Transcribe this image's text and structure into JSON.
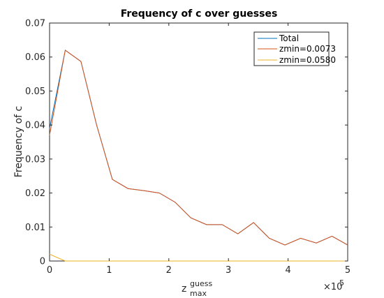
{
  "chart_data": {
    "type": "line",
    "title": "Frequency of c over guesses",
    "ylabel": "Frequency of c",
    "xlabel": {
      "base": "z",
      "superscript": "guess",
      "subscript": "max"
    },
    "x_exponent_label": {
      "base": "×10",
      "exponent": "5"
    },
    "xlim": [
      0,
      5
    ],
    "ylim": [
      0,
      0.07
    ],
    "x_ticks": [
      0,
      1,
      2,
      3,
      4,
      5
    ],
    "x_tick_labels": [
      "0",
      "1",
      "2",
      "3",
      "4",
      "5"
    ],
    "y_ticks": [
      0,
      0.01,
      0.02,
      0.03,
      0.04,
      0.05,
      0.06,
      0.07
    ],
    "y_tick_labels": [
      "0",
      "0.01",
      "0.02",
      "0.03",
      "0.04",
      "0.05",
      "0.06",
      "0.07"
    ],
    "grid": false,
    "legend_position": "top-right",
    "series": [
      {
        "name": "Total",
        "color": "#0072BD",
        "x": [
          0,
          0.263,
          0.526,
          0.789,
          1.053,
          1.316,
          1.579,
          1.842,
          2.105,
          2.368,
          2.632,
          2.895,
          3.158,
          3.421,
          3.684,
          3.947,
          4.211,
          4.474,
          4.737,
          5.0
        ],
        "y": [
          0.039,
          0.062,
          0.0587,
          0.04,
          0.024,
          0.0213,
          0.0207,
          0.02,
          0.0173,
          0.0127,
          0.0107,
          0.0107,
          0.008,
          0.0113,
          0.0067,
          0.0047,
          0.0067,
          0.0053,
          0.0073,
          0.0047
        ]
      },
      {
        "name": "zmin=0.0073",
        "color": "#D95319",
        "x": [
          0,
          0.263,
          0.526,
          0.789,
          1.053,
          1.316,
          1.579,
          1.842,
          2.105,
          2.368,
          2.632,
          2.895,
          3.158,
          3.421,
          3.684,
          3.947,
          4.211,
          4.474,
          4.737,
          5.0
        ],
        "y": [
          0.037,
          0.062,
          0.0587,
          0.04,
          0.024,
          0.0213,
          0.0207,
          0.02,
          0.0173,
          0.0127,
          0.0107,
          0.0107,
          0.008,
          0.0113,
          0.0067,
          0.0047,
          0.0067,
          0.0053,
          0.0073,
          0.0047
        ]
      },
      {
        "name": "zmin=0.0580",
        "color": "#EDB120",
        "x": [
          0,
          0.263,
          0.526,
          0.789,
          1.053,
          1.316,
          1.579,
          1.842,
          2.105,
          2.368,
          2.632,
          2.895,
          3.158,
          3.421,
          3.684,
          3.947,
          4.211,
          4.474,
          4.737,
          5.0
        ],
        "y": [
          0.002,
          0,
          0,
          0,
          0,
          0,
          0,
          0,
          0,
          0,
          0,
          0,
          0,
          0,
          0,
          0,
          0,
          0,
          0,
          0
        ]
      }
    ]
  }
}
